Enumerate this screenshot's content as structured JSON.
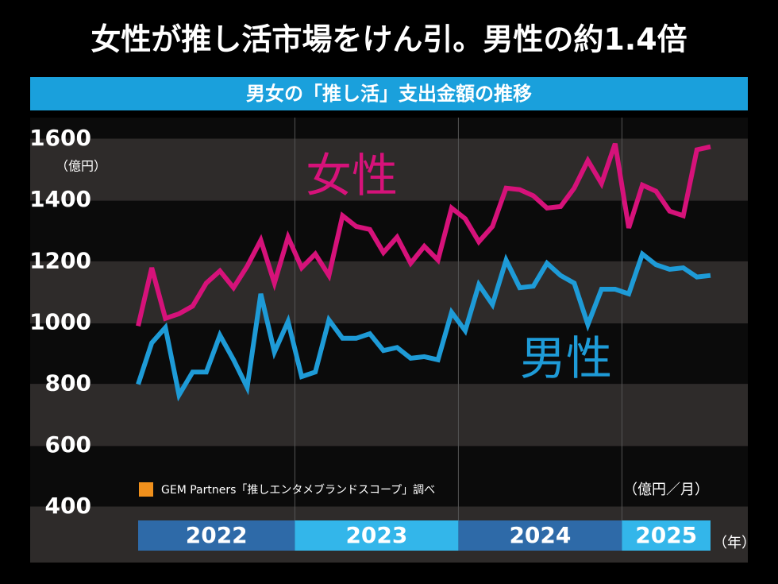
{
  "chart_data": {
    "type": "line",
    "title": "女性が推し活市場をけん引。男性の約1.4倍",
    "subtitle": "男女の「推し活」支出金額の推移",
    "y_unit": "（億円）",
    "unit_note": "（億円／月）",
    "year_unit": "（年）",
    "source": "GEM Partners「推しエンタメブランドスコープ」調べ",
    "periods": [
      "2022",
      "2023",
      "2024",
      "2025"
    ],
    "categories": [
      null,
      null,
      null,
      null,
      null,
      null,
      null,
      null,
      null,
      null,
      null,
      null,
      null,
      null,
      null,
      null,
      null,
      null,
      null,
      null,
      null,
      null,
      null,
      null,
      null,
      null,
      null,
      null,
      null,
      null,
      null,
      null,
      null,
      null,
      null,
      null,
      null,
      null,
      null,
      null,
      null,
      null,
      null
    ],
    "ylim": [
      400,
      1600
    ],
    "yticks": [
      400,
      600,
      800,
      1000,
      1200,
      1400,
      1600
    ],
    "series": [
      {
        "name": "女性",
        "color": "#d6127a",
        "values": [
          990,
          1180,
          1015,
          1030,
          1055,
          1130,
          1170,
          1115,
          1185,
          1270,
          1130,
          1280,
          1180,
          1225,
          1155,
          1350,
          1315,
          1305,
          1230,
          1280,
          1195,
          1250,
          1205,
          1375,
          1340,
          1265,
          1315,
          1440,
          1435,
          1415,
          1375,
          1380,
          1440,
          1530,
          1455,
          1585,
          1310,
          1450,
          1430,
          1365,
          1350,
          1565,
          1575
        ]
      },
      {
        "name": "男性",
        "color": "#1e9bd7",
        "values": [
          800,
          935,
          985,
          765,
          840,
          840,
          960,
          880,
          790,
          1095,
          905,
          1005,
          825,
          840,
          1010,
          950,
          950,
          965,
          910,
          920,
          885,
          890,
          880,
          1035,
          975,
          1125,
          1060,
          1205,
          1115,
          1120,
          1195,
          1155,
          1130,
          995,
          1110,
          1110,
          1095,
          1225,
          1190,
          1175,
          1180,
          1150,
          1155
        ]
      }
    ]
  }
}
